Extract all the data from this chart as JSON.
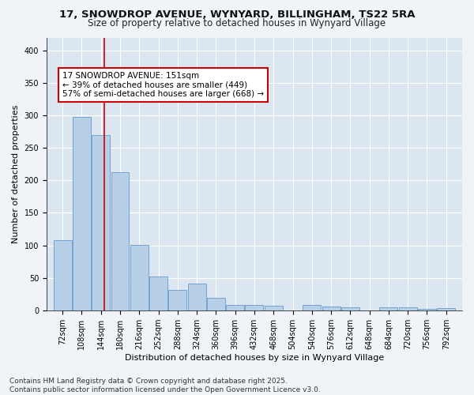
{
  "title_line1": "17, SNOWDROP AVENUE, WYNYARD, BILLINGHAM, TS22 5RA",
  "title_line2": "Size of property relative to detached houses in Wynyard Village",
  "xlabel": "Distribution of detached houses by size in Wynyard Village",
  "ylabel": "Number of detached properties",
  "bar_color": "#b8cfe8",
  "bar_edge_color": "#6699cc",
  "bg_color": "#dce6f0",
  "grid_color": "#ffffff",
  "vline_x": 151,
  "vline_color": "#cc0000",
  "annotation_text": "17 SNOWDROP AVENUE: 151sqm\n← 39% of detached houses are smaller (449)\n57% of semi-detached houses are larger (668) →",
  "annotation_box_color": "#cc0000",
  "categories": [
    72,
    108,
    144,
    180,
    216,
    252,
    288,
    324,
    360,
    396,
    432,
    468,
    504,
    540,
    576,
    612,
    648,
    684,
    720,
    756,
    792
  ],
  "values": [
    108,
    298,
    270,
    213,
    101,
    52,
    31,
    41,
    19,
    8,
    8,
    7,
    0,
    8,
    6,
    4,
    0,
    5,
    5,
    2,
    3
  ],
  "ylim": [
    0,
    420
  ],
  "yticks": [
    0,
    50,
    100,
    150,
    200,
    250,
    300,
    350,
    400
  ],
  "footer_line1": "Contains HM Land Registry data © Crown copyright and database right 2025.",
  "footer_line2": "Contains public sector information licensed under the Open Government Licence v3.0.",
  "title_fontsize": 9.5,
  "subtitle_fontsize": 8.5,
  "axis_label_fontsize": 8,
  "tick_fontsize": 7,
  "footer_fontsize": 6.5,
  "ann_fontsize": 7.5,
  "fig_bg": "#f0f4f8"
}
